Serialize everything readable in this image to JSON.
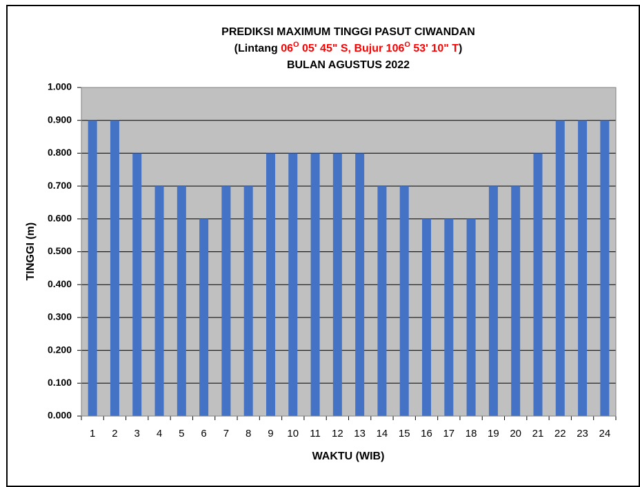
{
  "chart_data": {
    "type": "bar",
    "title": "PREDIKSI MAXIMUM  TINGGI PASUT CIWANDAN",
    "subtitle_parts": [
      {
        "text": "(Lintang ",
        "color": "#000000"
      },
      {
        "text": "06",
        "color": "#ff0000"
      },
      {
        "text": "O",
        "color": "#ff0000",
        "sup": true
      },
      {
        "text": " 05' 45\" S, Bujur 106",
        "color": "#ff0000"
      },
      {
        "text": "O",
        "color": "#ff0000",
        "sup": true
      },
      {
        "text": " 53' 10\" T",
        "color": "#ff0000"
      },
      {
        "text": ")",
        "color": "#000000"
      }
    ],
    "title2": "BULAN  AGUSTUS 2022",
    "x_label": "WAKTU (WIB)",
    "y_label": "TINGGI (m)",
    "categories": [
      "1",
      "2",
      "3",
      "4",
      "5",
      "6",
      "7",
      "8",
      "9",
      "10",
      "11",
      "12",
      "13",
      "14",
      "15",
      "16",
      "17",
      "18",
      "19",
      "20",
      "21",
      "22",
      "23",
      "24"
    ],
    "values": [
      0.9,
      0.9,
      0.8,
      0.7,
      0.7,
      0.6,
      0.7,
      0.7,
      0.8,
      0.8,
      0.8,
      0.8,
      0.8,
      0.7,
      0.7,
      0.6,
      0.6,
      0.6,
      0.7,
      0.7,
      0.8,
      0.9,
      0.9,
      0.9
    ],
    "color": "#4472c4",
    "plot_background": "#c0c0c0",
    "ylim": [
      0,
      1
    ],
    "yticks": [
      {
        "value": 0,
        "label": "0.000"
      },
      {
        "value": 0.1,
        "label": "0.100"
      },
      {
        "value": 0.2,
        "label": "0.200"
      },
      {
        "value": 0.3,
        "label": "0.300"
      },
      {
        "value": 0.4,
        "label": "0.400"
      },
      {
        "value": 0.5,
        "label": "0.500"
      },
      {
        "value": 0.6,
        "label": "0.600"
      },
      {
        "value": 0.7,
        "label": "0.700"
      },
      {
        "value": 0.8,
        "label": "0.800"
      },
      {
        "value": 0.9,
        "label": "0.900"
      },
      {
        "value": 1,
        "label": "1.000"
      }
    ],
    "grid": true
  }
}
